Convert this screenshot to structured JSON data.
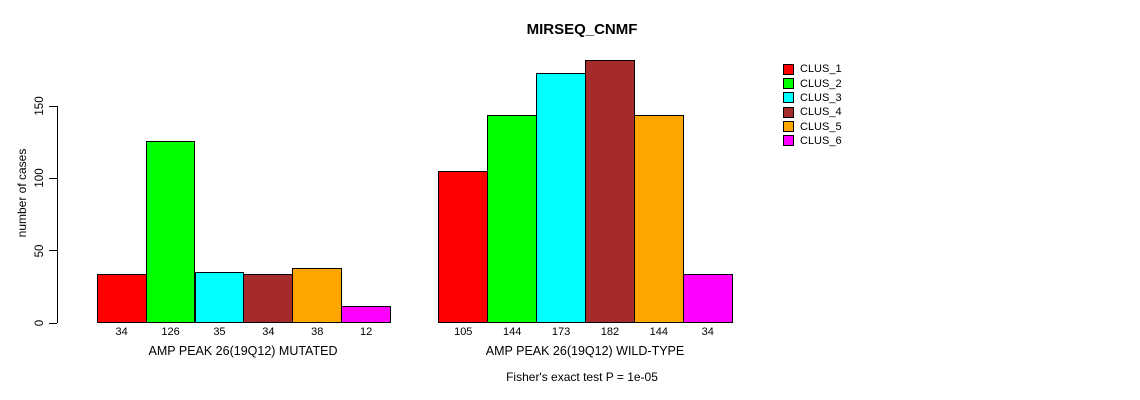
{
  "chart_data": {
    "type": "bar",
    "title": "MIRSEQ_CNMF",
    "ylabel": "number of cases",
    "xlabel": "",
    "ylim": [
      0,
      150
    ],
    "yticks": [
      0,
      50,
      100,
      150
    ],
    "grid": false,
    "legend_position": "right",
    "categories": [
      "AMP PEAK 26(19Q12) MUTATED",
      "AMP PEAK 26(19Q12) WILD-TYPE"
    ],
    "series": [
      {
        "name": "CLUS_1",
        "color": "#FF0000",
        "values": [
          34,
          105
        ]
      },
      {
        "name": "CLUS_2",
        "color": "#00FF00",
        "values": [
          126,
          144
        ]
      },
      {
        "name": "CLUS_3",
        "color": "#00FFFF",
        "values": [
          35,
          173
        ]
      },
      {
        "name": "CLUS_4",
        "color": "#A52A2A",
        "values": [
          34,
          182
        ]
      },
      {
        "name": "CLUS_5",
        "color": "#FFA500",
        "values": [
          38,
          144
        ]
      },
      {
        "name": "CLUS_6",
        "color": "#FF00FF",
        "values": [
          12,
          34
        ]
      }
    ],
    "bar_value_labels": [
      [
        34,
        126,
        35,
        34,
        38,
        12
      ],
      [
        105,
        144,
        173,
        182,
        144,
        34
      ]
    ],
    "annotation": "Fisher's exact test P = 1e-05",
    "axis_color": "#000000",
    "bar_border_color": "#000000"
  }
}
